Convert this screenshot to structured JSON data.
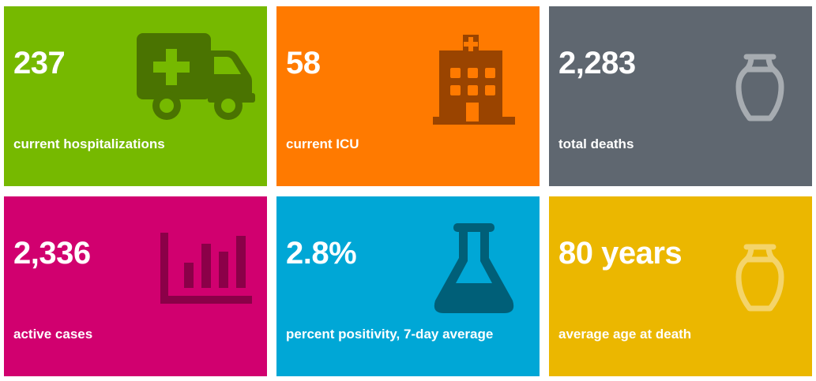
{
  "tiles": [
    {
      "value": "237",
      "label": "current hospitalizations",
      "icon": "ambulance-icon",
      "color": "#76b900"
    },
    {
      "value": "58",
      "label": "current ICU",
      "icon": "hospital-icon",
      "color": "#ff7a00"
    },
    {
      "value": "2,283",
      "label": "total deaths",
      "icon": "urn-icon",
      "color": "#5f6770"
    },
    {
      "value": "2,336",
      "label": "active cases",
      "icon": "bar-chart-icon",
      "color": "#d1006f"
    },
    {
      "value": "2.8%",
      "label": "percent positivity, 7-day average",
      "icon": "flask-icon",
      "color": "#00a7d6"
    },
    {
      "value": "80 years",
      "label": "average age at death",
      "icon": "urn-icon",
      "color": "#ebb700"
    }
  ]
}
